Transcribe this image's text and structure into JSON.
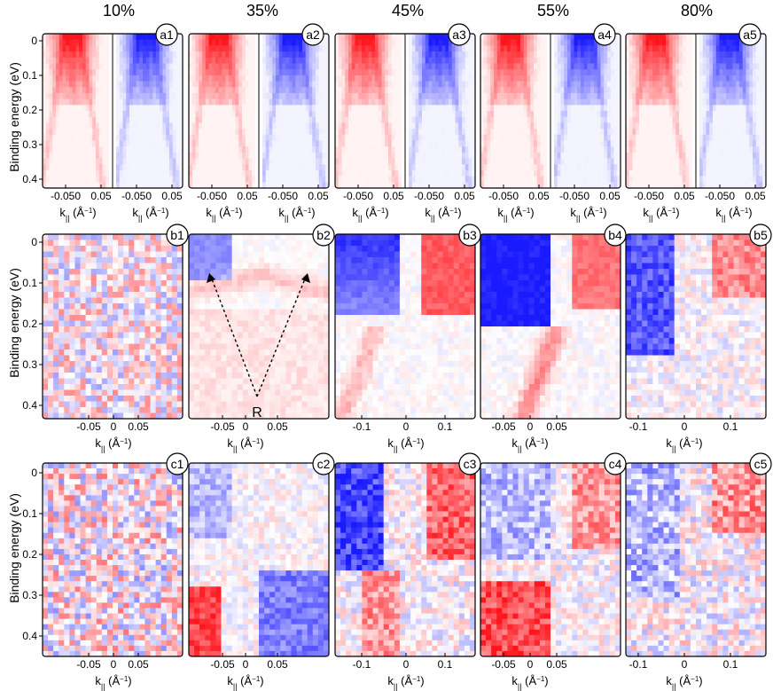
{
  "doping_levels": [
    "10%",
    "35%",
    "45%",
    "55%",
    "80%"
  ],
  "y_axis_label": "Binding energy (eV)",
  "x_axis_label": "k",
  "x_axis_sub": "||",
  "x_axis_unit": " (Å",
  "x_axis_unit_exp": "−1",
  "x_axis_unit_close": ")",
  "colors": {
    "red": "#e8141c",
    "blue": "#1a1ae6",
    "frame": "#000000"
  },
  "row_a": {
    "panel_labels": [
      "a1",
      "a2",
      "a3",
      "a4",
      "a5"
    ],
    "y_ticks": [
      "0",
      "0.1",
      "0.2",
      "0.3",
      "0.4"
    ],
    "x_ticks": [
      "-0.050",
      "0.05",
      "-0.050",
      "0.05"
    ]
  },
  "row_b": {
    "panel_labels": [
      "b1",
      "b2",
      "b3",
      "b4",
      "b5"
    ],
    "y_ticks": [
      "0",
      "0.1",
      "0.2",
      "0.3",
      "0.4"
    ],
    "x_ticks": [
      [
        "-0.05",
        "0",
        "0.05"
      ],
      [
        "-0.05",
        "0",
        "0.05"
      ],
      [
        "-0.1",
        "0",
        "0.1"
      ],
      [
        "-0.05",
        "0",
        "0.05"
      ],
      [
        "-0.1",
        "0",
        "0.1"
      ]
    ],
    "annotation": "R"
  },
  "row_c": {
    "panel_labels": [
      "c1",
      "c2",
      "c3",
      "c4",
      "c5"
    ],
    "y_ticks": [
      "0",
      "0.1",
      "0.2",
      "0.3",
      "0.4"
    ],
    "x_ticks": [
      [
        "-0.05",
        "0",
        "0.05"
      ],
      [
        "-0.05",
        "0",
        "0.05"
      ],
      [
        "-0.1",
        "0",
        "0.1"
      ],
      [
        "-0.05",
        "0",
        "0.05"
      ],
      [
        "-0.1",
        "0",
        "0.1"
      ]
    ]
  }
}
